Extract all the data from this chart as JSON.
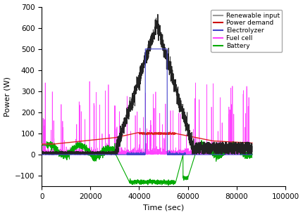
{
  "title": "",
  "xlabel": "Time (sec)",
  "ylabel": "Power (W)",
  "xlim": [
    0,
    100000
  ],
  "ylim": [
    -150,
    700
  ],
  "yticks": [
    -100,
    0,
    100,
    200,
    300,
    400,
    500,
    600,
    700
  ],
  "xticks": [
    0,
    20000,
    40000,
    60000,
    80000,
    100000
  ],
  "legend_labels": [
    "Renewable input",
    "Power demand",
    "Electrolyzer",
    "Fuel cell",
    "Battery"
  ],
  "legend_colors": [
    "#999999",
    "#cc0000",
    "#4444cc",
    "#ff44ff",
    "#00aa00"
  ],
  "figsize": [
    4.3,
    3.06
  ],
  "dpi": 100
}
